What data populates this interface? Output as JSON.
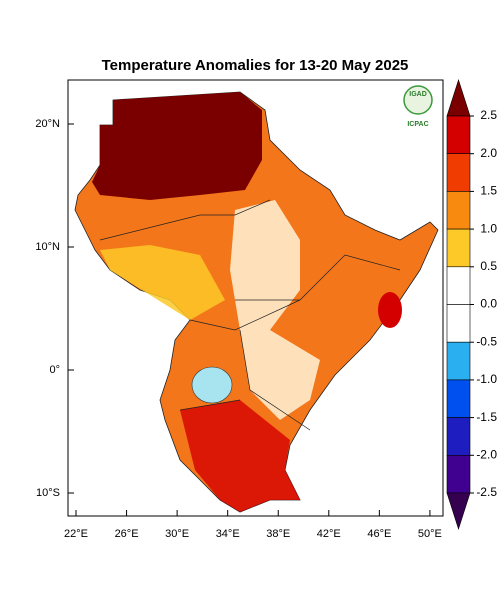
{
  "title": "Temperature Anomalies for 13-20 May 2025",
  "logo": {
    "name": "IGAD",
    "org": "ICPAC"
  },
  "map": {
    "lon_ticks": [
      {
        "value": 22,
        "label": "22°E"
      },
      {
        "value": 26,
        "label": "26°E"
      },
      {
        "value": 30,
        "label": "30°E"
      },
      {
        "value": 34,
        "label": "34°E"
      },
      {
        "value": 38,
        "label": "38°E"
      },
      {
        "value": 42,
        "label": "42°E"
      },
      {
        "value": 46,
        "label": "46°E"
      },
      {
        "value": 50,
        "label": "50°E"
      }
    ],
    "lat_ticks": [
      {
        "value": 20,
        "label": "20°N"
      },
      {
        "value": 10,
        "label": "10°N"
      },
      {
        "value": 0,
        "label": "0°"
      },
      {
        "value": -10,
        "label": "10°S"
      }
    ]
  },
  "colorbar": {
    "ticks": [
      2.5,
      {
        "value": 2,
        "label": "2.0"
      },
      1.5,
      {
        "value": 1,
        "label": "1.0"
      },
      0.5,
      {
        "value": 0,
        "label": "0.0"
      },
      -0.5,
      {
        "value": -1,
        "label": "-1.0"
      },
      -1.5,
      {
        "value": -2,
        "label": "-2.0"
      },
      -2.5
    ],
    "colors": [
      "#7a0000",
      "#d40000",
      "#f03c00",
      "#f88a10",
      "#fcc928",
      "#ffffff",
      "#ffffff",
      "#2ab0f0",
      "#0050f0",
      "#1e1ec0",
      "#400090",
      "#360050"
    ]
  }
}
